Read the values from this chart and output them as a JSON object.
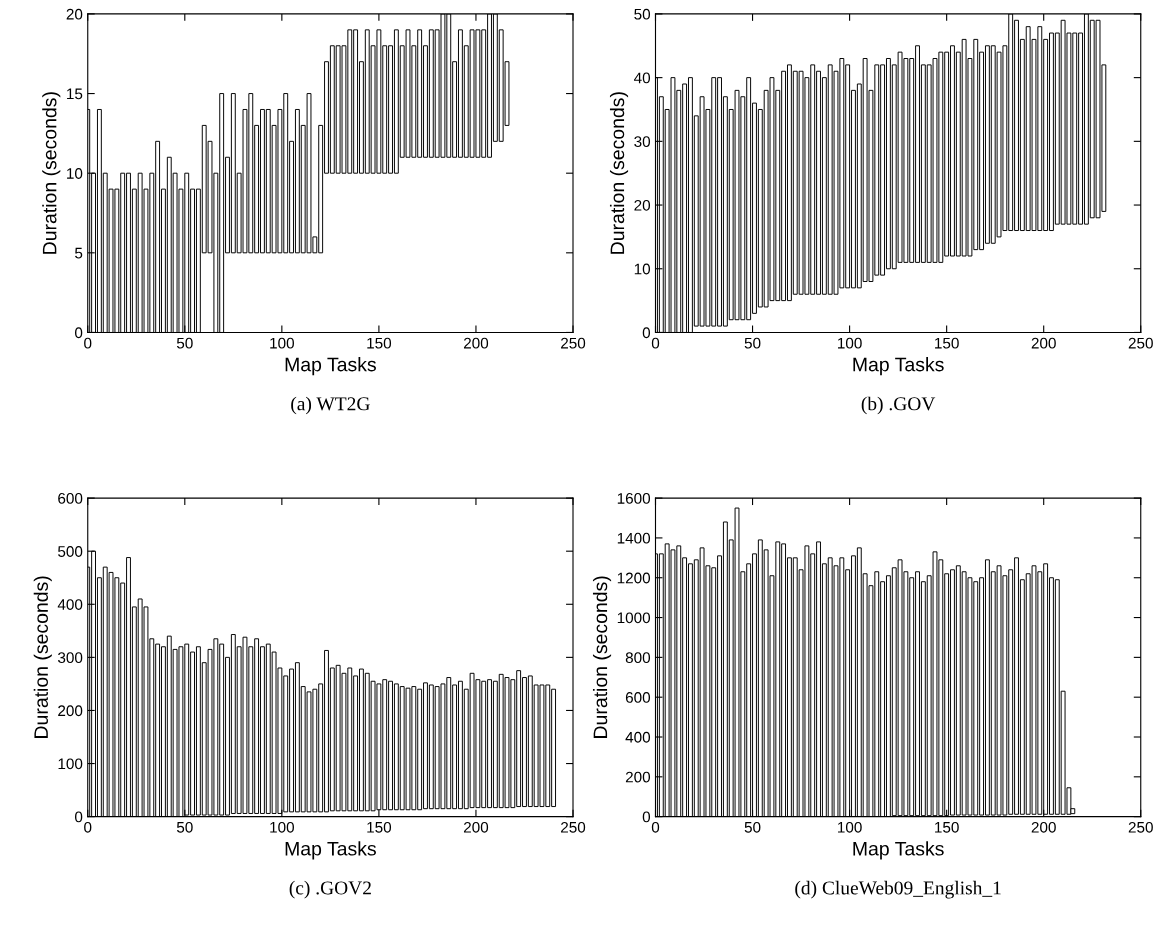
{
  "chart_data": [
    {
      "type": "bar",
      "title": "(a) WT2G",
      "xlabel": "Map Tasks",
      "ylabel": "Duration (seconds)",
      "color": "#000000",
      "x": [
        0,
        3,
        6,
        9,
        12,
        15,
        18,
        21,
        24,
        27,
        30,
        33,
        36,
        39,
        42,
        45,
        48,
        51,
        54,
        57,
        60,
        63,
        66,
        69,
        72,
        75,
        78,
        81,
        84,
        87,
        90,
        93,
        96,
        99,
        102,
        105,
        108,
        111,
        114,
        117,
        120,
        123,
        126,
        129,
        132,
        135,
        138,
        141,
        144,
        147,
        150,
        153,
        156,
        159,
        162,
        165,
        168,
        171,
        174,
        177,
        180,
        183,
        186,
        189,
        192,
        195,
        198,
        201,
        204,
        207,
        210,
        213,
        216
      ],
      "base": [
        0,
        0,
        0,
        0,
        0,
        0,
        0,
        0,
        0,
        0,
        0,
        0,
        0,
        0,
        0,
        0,
        0,
        0,
        0,
        0,
        5,
        5,
        0,
        0,
        5,
        5,
        5,
        5,
        5,
        5,
        5,
        5,
        5,
        5,
        5,
        5,
        5,
        5,
        5,
        5,
        5,
        10,
        10,
        10,
        10,
        10,
        10,
        10,
        10,
        10,
        10,
        10,
        10,
        10,
        11,
        11,
        11,
        11,
        11,
        11,
        11,
        11,
        11,
        11,
        11,
        11,
        11,
        11,
        11,
        11,
        12,
        12,
        13
      ],
      "values": [
        14,
        10,
        14,
        10,
        9,
        9,
        10,
        10,
        9,
        10,
        9,
        10,
        12,
        9,
        11,
        10,
        9,
        10,
        9,
        9,
        8,
        7,
        10,
        15,
        6,
        10,
        5,
        9,
        10,
        8,
        9,
        9,
        8,
        9,
        10,
        7,
        9,
        8,
        10,
        1,
        8,
        7,
        8,
        8,
        8,
        9,
        9,
        7,
        9,
        8,
        9,
        8,
        8,
        9,
        7,
        8,
        7,
        8,
        7,
        8,
        8,
        9,
        9,
        6,
        8,
        7,
        8,
        8,
        8,
        9,
        8,
        7,
        4
      ],
      "xlim": [
        0,
        250
      ],
      "ylim": [
        0,
        20
      ],
      "xticks": [
        0,
        50,
        100,
        150,
        200,
        250
      ],
      "yticks": [
        0,
        5,
        10,
        15,
        20
      ]
    },
    {
      "type": "bar",
      "title": "(b) .GOV",
      "xlabel": "Map Tasks",
      "ylabel": "Duration (seconds)",
      "color": "#000000",
      "x": [
        0,
        3,
        6,
        9,
        12,
        15,
        18,
        21,
        24,
        27,
        30,
        33,
        36,
        39,
        42,
        45,
        48,
        51,
        54,
        57,
        60,
        63,
        66,
        69,
        72,
        75,
        78,
        81,
        84,
        87,
        90,
        93,
        96,
        99,
        102,
        105,
        108,
        111,
        114,
        117,
        120,
        123,
        126,
        129,
        132,
        135,
        138,
        141,
        144,
        147,
        150,
        153,
        156,
        159,
        162,
        165,
        168,
        171,
        174,
        177,
        180,
        183,
        186,
        189,
        192,
        195,
        198,
        201,
        204,
        207,
        210,
        213,
        216,
        219,
        222,
        225,
        228,
        231
      ],
      "base": [
        0,
        0,
        0,
        0,
        0,
        0,
        0,
        1,
        1,
        1,
        1,
        1,
        1,
        2,
        2,
        2,
        2,
        3,
        4,
        4,
        5,
        5,
        5,
        5,
        6,
        6,
        6,
        6,
        6,
        6,
        6,
        6,
        7,
        7,
        7,
        7,
        8,
        8,
        9,
        9,
        10,
        10,
        11,
        11,
        11,
        11,
        11,
        11,
        11,
        11,
        12,
        12,
        12,
        12,
        12,
        13,
        13,
        14,
        14,
        15,
        16,
        16,
        16,
        16,
        16,
        16,
        16,
        16,
        16,
        17,
        17,
        17,
        17,
        17,
        17,
        18,
        18,
        19
      ],
      "values": [
        40,
        37,
        35,
        40,
        38,
        39,
        40,
        33,
        36,
        34,
        39,
        39,
        36,
        33,
        36,
        35,
        38,
        33,
        31,
        34,
        35,
        33,
        36,
        37,
        35,
        35,
        34,
        36,
        35,
        34,
        36,
        35,
        36,
        35,
        31,
        32,
        35,
        30,
        33,
        33,
        33,
        32,
        33,
        32,
        32,
        34,
        31,
        31,
        32,
        33,
        32,
        33,
        32,
        34,
        31,
        33,
        31,
        31,
        31,
        29,
        29,
        34,
        33,
        30,
        32,
        30,
        32,
        30,
        31,
        30,
        32,
        30,
        30,
        30,
        33,
        31,
        31,
        23
      ],
      "xlim": [
        0,
        250
      ],
      "ylim": [
        0,
        50
      ],
      "xticks": [
        0,
        50,
        100,
        150,
        200,
        250
      ],
      "yticks": [
        0,
        10,
        20,
        30,
        40,
        50
      ]
    },
    {
      "type": "bar",
      "title": "(c) .GOV2",
      "xlabel": "Map Tasks",
      "ylabel": "Duration (seconds)",
      "color": "#000000",
      "x": [
        0,
        3,
        6,
        9,
        12,
        15,
        18,
        21,
        24,
        27,
        30,
        33,
        36,
        39,
        42,
        45,
        48,
        51,
        54,
        57,
        60,
        63,
        66,
        69,
        72,
        75,
        78,
        81,
        84,
        87,
        90,
        93,
        96,
        99,
        102,
        105,
        108,
        111,
        114,
        117,
        120,
        123,
        126,
        129,
        132,
        135,
        138,
        141,
        144,
        147,
        150,
        153,
        156,
        159,
        162,
        165,
        168,
        171,
        174,
        177,
        180,
        183,
        186,
        189,
        192,
        195,
        198,
        201,
        204,
        207,
        210,
        213,
        216,
        219,
        222,
        225,
        228,
        231,
        234,
        237,
        240
      ],
      "base": [
        0,
        0,
        0,
        0,
        0,
        0,
        0,
        0,
        0,
        0,
        0,
        0,
        0,
        0,
        0,
        0,
        0,
        3,
        3,
        3,
        3,
        3,
        3,
        3,
        3,
        6,
        6,
        6,
        6,
        6,
        6,
        6,
        6,
        6,
        9,
        9,
        9,
        9,
        9,
        9,
        9,
        9,
        11,
        11,
        11,
        11,
        11,
        11,
        11,
        11,
        13,
        13,
        13,
        13,
        13,
        13,
        13,
        13,
        15,
        15,
        15,
        15,
        15,
        15,
        15,
        15,
        17,
        17,
        17,
        17,
        17,
        17,
        17,
        17,
        19,
        19,
        19,
        19,
        19,
        19,
        19
      ],
      "values": [
        470,
        500,
        450,
        470,
        460,
        450,
        440,
        488,
        395,
        410,
        395,
        335,
        325,
        320,
        340,
        315,
        320,
        322,
        307,
        317,
        287,
        312,
        332,
        322,
        297,
        337,
        314,
        332,
        314,
        329,
        314,
        319,
        304,
        274,
        256,
        269,
        281,
        236,
        226,
        231,
        241,
        304,
        269,
        274,
        259,
        269,
        254,
        267,
        259,
        244,
        237,
        245,
        242,
        237,
        232,
        229,
        232,
        227,
        237,
        233,
        230,
        235,
        247,
        233,
        240,
        225,
        253,
        241,
        238,
        241,
        238,
        251,
        245,
        241,
        256,
        243,
        246,
        229,
        229,
        229,
        221
      ],
      "xlim": [
        0,
        250
      ],
      "ylim": [
        0,
        600
      ],
      "xticks": [
        0,
        50,
        100,
        150,
        200,
        250
      ],
      "yticks": [
        0,
        100,
        200,
        300,
        400,
        500,
        600
      ]
    },
    {
      "type": "bar",
      "title": "(d) ClueWeb09_English_1",
      "xlabel": "Map Tasks",
      "ylabel": "Duration (seconds)",
      "color": "#000000",
      "x": [
        0,
        3,
        6,
        9,
        12,
        15,
        18,
        21,
        24,
        27,
        30,
        33,
        36,
        39,
        42,
        45,
        48,
        51,
        54,
        57,
        60,
        63,
        66,
        69,
        72,
        75,
        78,
        81,
        84,
        87,
        90,
        93,
        96,
        99,
        102,
        105,
        108,
        111,
        114,
        117,
        120,
        123,
        126,
        129,
        132,
        135,
        138,
        141,
        144,
        147,
        150,
        153,
        156,
        159,
        162,
        165,
        168,
        171,
        174,
        177,
        180,
        183,
        186,
        189,
        192,
        195,
        198,
        201,
        204,
        207,
        210,
        213,
        215
      ],
      "base": [
        0,
        0,
        0,
        0,
        0,
        0,
        0,
        0,
        0,
        0,
        0,
        0,
        0,
        0,
        0,
        0,
        0,
        0,
        0,
        0,
        0,
        0,
        0,
        0,
        0,
        0,
        0,
        0,
        0,
        0,
        0,
        0,
        0,
        0,
        0,
        0,
        0,
        0,
        0,
        0,
        0,
        5,
        5,
        5,
        5,
        5,
        5,
        5,
        5,
        5,
        5,
        8,
        8,
        8,
        8,
        8,
        8,
        8,
        8,
        8,
        8,
        12,
        12,
        12,
        12,
        12,
        12,
        12,
        12,
        12,
        12,
        12,
        15
      ],
      "values": [
        1320,
        1320,
        1370,
        1340,
        1360,
        1300,
        1270,
        1290,
        1350,
        1260,
        1250,
        1310,
        1480,
        1390,
        1550,
        1230,
        1270,
        1320,
        1390,
        1340,
        1210,
        1380,
        1370,
        1300,
        1300,
        1240,
        1360,
        1320,
        1380,
        1270,
        1300,
        1260,
        1300,
        1240,
        1310,
        1350,
        1220,
        1160,
        1230,
        1180,
        1210,
        1245,
        1285,
        1225,
        1195,
        1225,
        1175,
        1205,
        1325,
        1285,
        1215,
        1232,
        1252,
        1222,
        1192,
        1172,
        1192,
        1282,
        1222,
        1252,
        1202,
        1228,
        1288,
        1178,
        1208,
        1248,
        1218,
        1258,
        1188,
        1178,
        618,
        133,
        25
      ],
      "xlim": [
        0,
        250
      ],
      "ylim": [
        0,
        1600
      ],
      "xticks": [
        0,
        50,
        100,
        150,
        200,
        250
      ],
      "yticks": [
        0,
        200,
        400,
        600,
        800,
        1000,
        1200,
        1400,
        1600
      ]
    }
  ]
}
